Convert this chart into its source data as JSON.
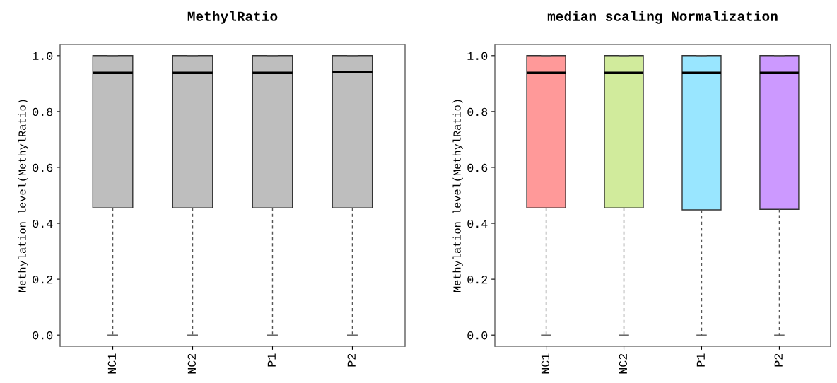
{
  "chart_data": [
    {
      "type": "box",
      "title": "MethylRatio",
      "ylabel": "Methylation level(MethylRatio)",
      "categories": [
        "NC1",
        "NC2",
        "P1",
        "P2"
      ],
      "colors": [
        "#bebebe",
        "#bebebe",
        "#bebebe",
        "#bebebe"
      ],
      "ylim": [
        -0.04,
        1.04
      ],
      "yticks": [
        {
          "value": 0,
          "label": "0.0"
        },
        {
          "value": 0.2,
          "label": "0.2"
        },
        {
          "value": 0.4,
          "label": "0.4"
        },
        {
          "value": 0.6,
          "label": "0.6"
        },
        {
          "value": 0.8,
          "label": "0.8"
        },
        {
          "value": 1,
          "label": "1.0"
        }
      ],
      "grid": false,
      "boxes": [
        {
          "low": 0,
          "q1": 0.455,
          "median": 0.938,
          "q3": 1.0,
          "high": 1.0
        },
        {
          "low": 0,
          "q1": 0.455,
          "median": 0.938,
          "q3": 1.0,
          "high": 1.0
        },
        {
          "low": 0,
          "q1": 0.455,
          "median": 0.938,
          "q3": 1.0,
          "high": 1.0
        },
        {
          "low": 0,
          "q1": 0.455,
          "median": 0.941,
          "q3": 1.0,
          "high": 1.0
        }
      ]
    },
    {
      "type": "box",
      "title": "median scaling Normalization",
      "ylabel": "Methylation level(MethylRatio)",
      "categories": [
        "NC1",
        "NC2",
        "P1",
        "P2"
      ],
      "colors": [
        "#ff9999",
        "#d1eb9c",
        "#99e6ff",
        "#cc99ff"
      ],
      "ylim": [
        -0.04,
        1.04
      ],
      "yticks": [
        {
          "value": 0,
          "label": "0.0"
        },
        {
          "value": 0.2,
          "label": "0.2"
        },
        {
          "value": 0.4,
          "label": "0.4"
        },
        {
          "value": 0.6,
          "label": "0.6"
        },
        {
          "value": 0.8,
          "label": "0.8"
        },
        {
          "value": 1,
          "label": "1.0"
        }
      ],
      "grid": false,
      "boxes": [
        {
          "low": 0,
          "q1": 0.455,
          "median": 0.938,
          "q3": 1.0,
          "high": 1.0
        },
        {
          "low": 0,
          "q1": 0.455,
          "median": 0.938,
          "q3": 1.0,
          "high": 1.0
        },
        {
          "low": 0,
          "q1": 0.448,
          "median": 0.938,
          "q3": 1.0,
          "high": 1.0
        },
        {
          "low": 0,
          "q1": 0.45,
          "median": 0.938,
          "q3": 1.0,
          "high": 1.0
        }
      ]
    }
  ]
}
